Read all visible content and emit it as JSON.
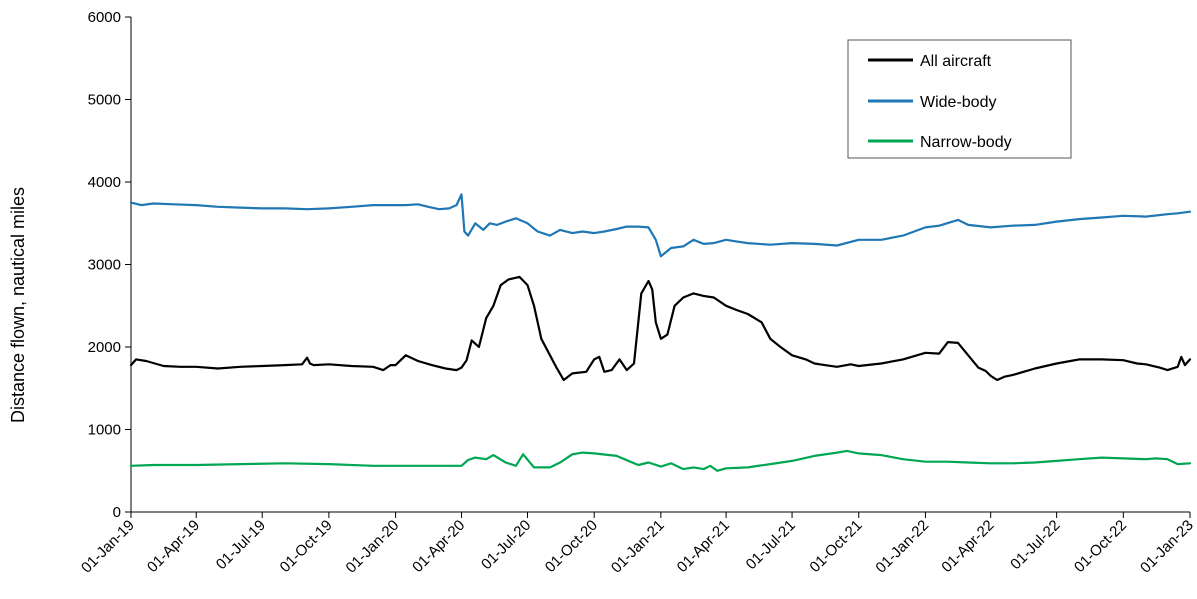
{
  "chart_data": {
    "type": "line",
    "title": "",
    "xlabel": "",
    "ylabel": "Distance flown, nautical miles",
    "ylim": [
      0,
      6000
    ],
    "xlim": [
      "2019-01-01",
      "2023-01-01"
    ],
    "yticks": [
      0,
      1000,
      2000,
      3000,
      4000,
      5000,
      6000
    ],
    "xticks": [
      {
        "date": "2019-01-01",
        "label": "01-Jan-19"
      },
      {
        "date": "2019-04-01",
        "label": "01-Apr-19"
      },
      {
        "date": "2019-07-01",
        "label": "01-Jul-19"
      },
      {
        "date": "2019-10-01",
        "label": "01-Oct-19"
      },
      {
        "date": "2020-01-01",
        "label": "01-Jan-20"
      },
      {
        "date": "2020-04-01",
        "label": "01-Apr-20"
      },
      {
        "date": "2020-07-01",
        "label": "01-Jul-20"
      },
      {
        "date": "2020-10-01",
        "label": "01-Oct-20"
      },
      {
        "date": "2021-01-01",
        "label": "01-Jan-21"
      },
      {
        "date": "2021-04-01",
        "label": "01-Apr-21"
      },
      {
        "date": "2021-07-01",
        "label": "01-Jul-21"
      },
      {
        "date": "2021-10-01",
        "label": "01-Oct-21"
      },
      {
        "date": "2022-01-01",
        "label": "01-Jan-22"
      },
      {
        "date": "2022-04-01",
        "label": "01-Apr-22"
      },
      {
        "date": "2022-07-01",
        "label": "01-Jul-22"
      },
      {
        "date": "2022-10-01",
        "label": "01-Oct-22"
      },
      {
        "date": "2023-01-01",
        "label": "01-Jan-23"
      }
    ],
    "grid": false,
    "legend_position": "top-right",
    "series": [
      {
        "name": "All aircraft",
        "color": "#000000",
        "x": [
          "2019-01-01",
          "2019-01-08",
          "2019-01-22",
          "2019-02-15",
          "2019-03-10",
          "2019-04-01",
          "2019-05-01",
          "2019-06-01",
          "2019-07-01",
          "2019-08-01",
          "2019-08-25",
          "2019-09-01",
          "2019-09-05",
          "2019-09-10",
          "2019-10-01",
          "2019-11-01",
          "2019-12-01",
          "2019-12-15",
          "2019-12-25",
          "2020-01-01",
          "2020-01-15",
          "2020-02-01",
          "2020-02-20",
          "2020-03-10",
          "2020-03-25",
          "2020-04-01",
          "2020-04-08",
          "2020-04-15",
          "2020-04-25",
          "2020-05-05",
          "2020-05-15",
          "2020-05-25",
          "2020-06-05",
          "2020-06-20",
          "2020-07-01",
          "2020-07-10",
          "2020-07-20",
          "2020-08-01",
          "2020-08-10",
          "2020-08-20",
          "2020-09-01",
          "2020-09-20",
          "2020-10-01",
          "2020-10-08",
          "2020-10-15",
          "2020-10-25",
          "2020-11-05",
          "2020-11-15",
          "2020-11-25",
          "2020-12-05",
          "2020-12-15",
          "2020-12-20",
          "2020-12-25",
          "2021-01-01",
          "2021-01-10",
          "2021-01-20",
          "2021-02-01",
          "2021-02-15",
          "2021-03-01",
          "2021-03-15",
          "2021-04-01",
          "2021-04-15",
          "2021-05-01",
          "2021-05-20",
          "2021-06-01",
          "2021-06-15",
          "2021-07-01",
          "2021-07-20",
          "2021-08-01",
          "2021-08-15",
          "2021-09-01",
          "2021-09-20",
          "2021-10-01",
          "2021-11-01",
          "2021-12-01",
          "2022-01-01",
          "2022-01-20",
          "2022-02-01",
          "2022-02-15",
          "2022-03-01",
          "2022-03-15",
          "2022-03-25",
          "2022-04-01",
          "2022-04-10",
          "2022-04-20",
          "2022-05-01",
          "2022-06-01",
          "2022-07-01",
          "2022-07-20",
          "2022-08-01",
          "2022-09-01",
          "2022-10-01",
          "2022-10-20",
          "2022-11-01",
          "2022-11-20",
          "2022-12-01",
          "2022-12-15",
          "2022-12-20",
          "2022-12-25",
          "2023-01-01"
        ],
        "values": [
          1780,
          1850,
          1830,
          1770,
          1760,
          1760,
          1740,
          1760,
          1770,
          1780,
          1790,
          1870,
          1800,
          1780,
          1790,
          1770,
          1760,
          1720,
          1780,
          1780,
          1900,
          1830,
          1780,
          1740,
          1720,
          1750,
          1840,
          2080,
          2000,
          2350,
          2500,
          2750,
          2820,
          2850,
          2750,
          2500,
          2100,
          1900,
          1750,
          1600,
          1680,
          1700,
          1850,
          1880,
          1700,
          1720,
          1850,
          1720,
          1800,
          2650,
          2800,
          2700,
          2300,
          2100,
          2150,
          2500,
          2600,
          2650,
          2620,
          2600,
          2500,
          2450,
          2400,
          2300,
          2100,
          2000,
          1900,
          1850,
          1800,
          1780,
          1760,
          1790,
          1770,
          1800,
          1850,
          1930,
          1920,
          2060,
          2050,
          1900,
          1750,
          1710,
          1650,
          1600,
          1640,
          1660,
          1740,
          1800,
          1830,
          1850,
          1850,
          1840,
          1800,
          1790,
          1750,
          1720,
          1760,
          1880,
          1780,
          1850
        ]
      },
      {
        "name": "Wide-body",
        "color": "#1f77b4",
        "x": [
          "2019-01-01",
          "2019-01-15",
          "2019-02-01",
          "2019-03-01",
          "2019-04-01",
          "2019-05-01",
          "2019-06-01",
          "2019-07-01",
          "2019-08-01",
          "2019-09-01",
          "2019-10-01",
          "2019-11-01",
          "2019-12-01",
          "2020-01-01",
          "2020-01-15",
          "2020-02-01",
          "2020-02-15",
          "2020-03-01",
          "2020-03-15",
          "2020-03-25",
          "2020-04-01",
          "2020-04-05",
          "2020-04-10",
          "2020-04-20",
          "2020-05-01",
          "2020-05-10",
          "2020-05-20",
          "2020-06-01",
          "2020-06-15",
          "2020-07-01",
          "2020-07-15",
          "2020-08-01",
          "2020-08-15",
          "2020-09-01",
          "2020-09-15",
          "2020-10-01",
          "2020-10-15",
          "2020-11-01",
          "2020-11-15",
          "2020-12-01",
          "2020-12-15",
          "2020-12-25",
          "2021-01-01",
          "2021-01-15",
          "2021-02-01",
          "2021-02-15",
          "2021-03-01",
          "2021-03-15",
          "2021-04-01",
          "2021-04-15",
          "2021-05-01",
          "2021-06-01",
          "2021-07-01",
          "2021-08-01",
          "2021-09-01",
          "2021-10-01",
          "2021-11-01",
          "2021-12-01",
          "2022-01-01",
          "2022-01-20",
          "2022-02-15",
          "2022-03-01",
          "2022-04-01",
          "2022-05-01",
          "2022-06-01",
          "2022-07-01",
          "2022-08-01",
          "2022-09-01",
          "2022-10-01",
          "2022-11-01",
          "2022-12-01",
          "2022-12-15",
          "2023-01-01"
        ],
        "values": [
          3750,
          3720,
          3740,
          3730,
          3720,
          3700,
          3690,
          3680,
          3680,
          3670,
          3680,
          3700,
          3720,
          3720,
          3720,
          3730,
          3700,
          3670,
          3680,
          3720,
          3850,
          3400,
          3350,
          3500,
          3420,
          3500,
          3480,
          3520,
          3560,
          3500,
          3400,
          3350,
          3420,
          3380,
          3400,
          3380,
          3400,
          3430,
          3460,
          3460,
          3450,
          3300,
          3100,
          3200,
          3220,
          3300,
          3250,
          3260,
          3300,
          3280,
          3260,
          3240,
          3260,
          3250,
          3230,
          3300,
          3300,
          3350,
          3450,
          3470,
          3540,
          3480,
          3450,
          3470,
          3480,
          3520,
          3550,
          3570,
          3590,
          3580,
          3610,
          3620,
          3640
        ]
      },
      {
        "name": "Narrow-body",
        "color": "#00a651",
        "x": [
          "2019-01-01",
          "2019-02-01",
          "2019-04-01",
          "2019-06-01",
          "2019-08-01",
          "2019-10-01",
          "2019-12-01",
          "2020-02-01",
          "2020-03-20",
          "2020-04-01",
          "2020-04-10",
          "2020-04-20",
          "2020-05-05",
          "2020-05-15",
          "2020-06-01",
          "2020-06-15",
          "2020-06-25",
          "2020-07-10",
          "2020-08-01",
          "2020-08-15",
          "2020-09-01",
          "2020-09-15",
          "2020-10-01",
          "2020-11-01",
          "2020-11-20",
          "2020-12-01",
          "2020-12-15",
          "2021-01-01",
          "2021-01-15",
          "2021-02-01",
          "2021-02-15",
          "2021-03-01",
          "2021-03-10",
          "2021-03-20",
          "2021-04-01",
          "2021-05-01",
          "2021-06-01",
          "2021-07-01",
          "2021-08-01",
          "2021-09-01",
          "2021-09-15",
          "2021-10-01",
          "2021-11-01",
          "2021-12-01",
          "2022-01-01",
          "2022-02-01",
          "2022-03-01",
          "2022-04-01",
          "2022-05-01",
          "2022-06-01",
          "2022-07-01",
          "2022-08-01",
          "2022-09-01",
          "2022-10-01",
          "2022-11-01",
          "2022-11-15",
          "2022-12-01",
          "2022-12-15",
          "2023-01-01"
        ],
        "values": [
          560,
          570,
          570,
          580,
          590,
          580,
          560,
          560,
          560,
          560,
          630,
          660,
          640,
          690,
          600,
          560,
          700,
          540,
          540,
          600,
          700,
          720,
          710,
          680,
          610,
          570,
          600,
          550,
          590,
          520,
          540,
          520,
          560,
          500,
          530,
          540,
          580,
          620,
          680,
          720,
          740,
          710,
          690,
          640,
          610,
          610,
          600,
          590,
          590,
          600,
          620,
          640,
          660,
          650,
          640,
          650,
          640,
          580,
          590
        ]
      }
    ]
  }
}
